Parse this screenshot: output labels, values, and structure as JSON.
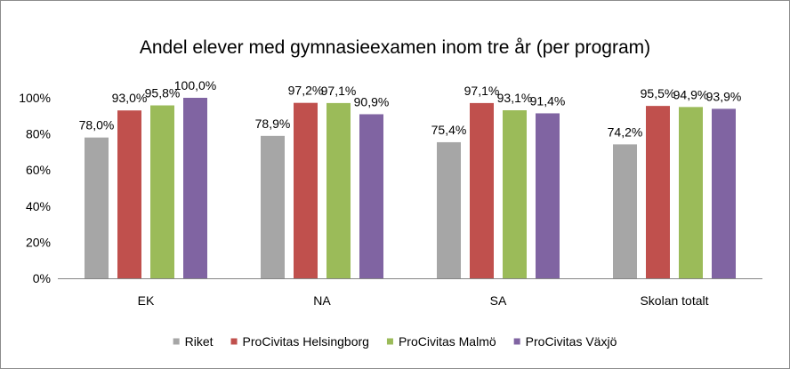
{
  "chart_data": {
    "type": "bar",
    "title": "Andel elever med gymnasieexamen inom tre år (per program)",
    "categories": [
      "EK",
      "NA",
      "SA",
      "Skolan totalt"
    ],
    "ylim": [
      0,
      100
    ],
    "yticks": [
      "0%",
      "20%",
      "40%",
      "60%",
      "80%",
      "100%"
    ],
    "grid": false,
    "legend_position": "bottom",
    "series": [
      {
        "name": "Riket",
        "color": "#a6a6a6",
        "values": [
          78.0,
          78.9,
          75.4,
          74.2
        ],
        "labels": [
          "78,0%",
          "78,9%",
          "75,4%",
          "74,2%"
        ]
      },
      {
        "name": "ProCivitas Helsingborg",
        "color": "#c0504d",
        "values": [
          93.0,
          97.2,
          97.1,
          95.5
        ],
        "labels": [
          "93,0%",
          "97,2%",
          "97,1%",
          "95,5%"
        ]
      },
      {
        "name": "ProCivitas Malmö",
        "color": "#9bbb59",
        "values": [
          95.8,
          97.1,
          93.1,
          94.9
        ],
        "labels": [
          "95,8%",
          "97,1%",
          "93,1%",
          "94,9%"
        ]
      },
      {
        "name": "ProCivitas Växjö",
        "color": "#8064a2",
        "values": [
          100.0,
          90.9,
          91.4,
          93.9
        ],
        "labels": [
          "100,0%",
          "90,9%",
          "91,4%",
          "93,9%"
        ]
      }
    ]
  }
}
